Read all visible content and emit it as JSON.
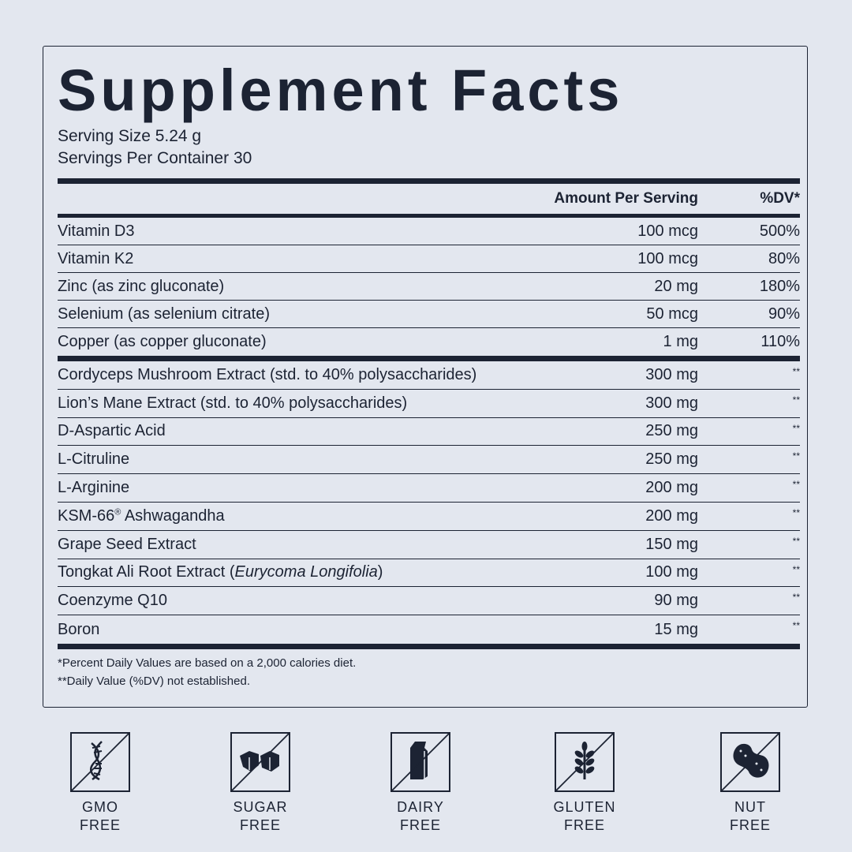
{
  "title": "Supplement Facts",
  "serving_size": "Serving Size 5.24 g",
  "servings_per_container": "Servings Per Container 30",
  "header": {
    "amount": "Amount Per Serving",
    "dv": "%DV*"
  },
  "vitamins": [
    {
      "name": "Vitamin D3",
      "amount": "100 mcg",
      "dv": "500%"
    },
    {
      "name": "Vitamin K2",
      "amount": "100 mcg",
      "dv": "80%"
    },
    {
      "name": "Zinc (as zinc gluconate)",
      "amount": "20 mg",
      "dv": "180%"
    },
    {
      "name": "Selenium (as selenium citrate)",
      "amount": "50 mcg",
      "dv": "90%"
    },
    {
      "name": "Copper (as copper gluconate)",
      "amount": "1 mg",
      "dv": "110%"
    }
  ],
  "other": [
    {
      "name": "Cordyceps Mushroom Extract (std. to 40% polysaccharides)",
      "amount": "300 mg",
      "dv": "**"
    },
    {
      "name": "Lion’s Mane Extract (std. to 40% polysaccharides)",
      "amount": "300 mg",
      "dv": "**"
    },
    {
      "name": "D-Aspartic Acid",
      "amount": "250 mg",
      "dv": "**"
    },
    {
      "name": "L-Citruline",
      "amount": "250 mg",
      "dv": "**"
    },
    {
      "name": "L-Arginine",
      "amount": "200 mg",
      "dv": "**"
    },
    {
      "name": "KSM-66",
      "sup": "®",
      "name_suffix": " Ashwagandha",
      "amount": "200 mg",
      "dv": "**"
    },
    {
      "name": "Grape Seed Extract",
      "amount": "150 mg",
      "dv": "**"
    },
    {
      "name": "Tongkat Ali Root Extract (",
      "italic": "Eurycoma Longifolia",
      "name_suffix": ")",
      "amount": "100 mg",
      "dv": "**"
    },
    {
      "name": "Coenzyme Q10",
      "amount": "90 mg",
      "dv": "**"
    },
    {
      "name": "Boron",
      "amount": "15 mg",
      "dv": "**"
    }
  ],
  "footnotes": [
    "*Percent Daily Values are based on a 2,000 calories diet.",
    "**Daily Value (%DV) not established."
  ],
  "badges": [
    {
      "icon": "dna-icon",
      "line1": "GMO",
      "line2": "FREE"
    },
    {
      "icon": "sugar-cubes-icon",
      "line1": "SUGAR",
      "line2": "FREE"
    },
    {
      "icon": "milk-carton-icon",
      "line1": "DAIRY",
      "line2": "FREE"
    },
    {
      "icon": "wheat-icon",
      "line1": "GLUTEN",
      "line2": "FREE"
    },
    {
      "icon": "peanut-icon",
      "line1": "NUT",
      "line2": "FREE"
    }
  ],
  "colors": {
    "background": "#e3e7ef",
    "ink": "#1c2333"
  }
}
